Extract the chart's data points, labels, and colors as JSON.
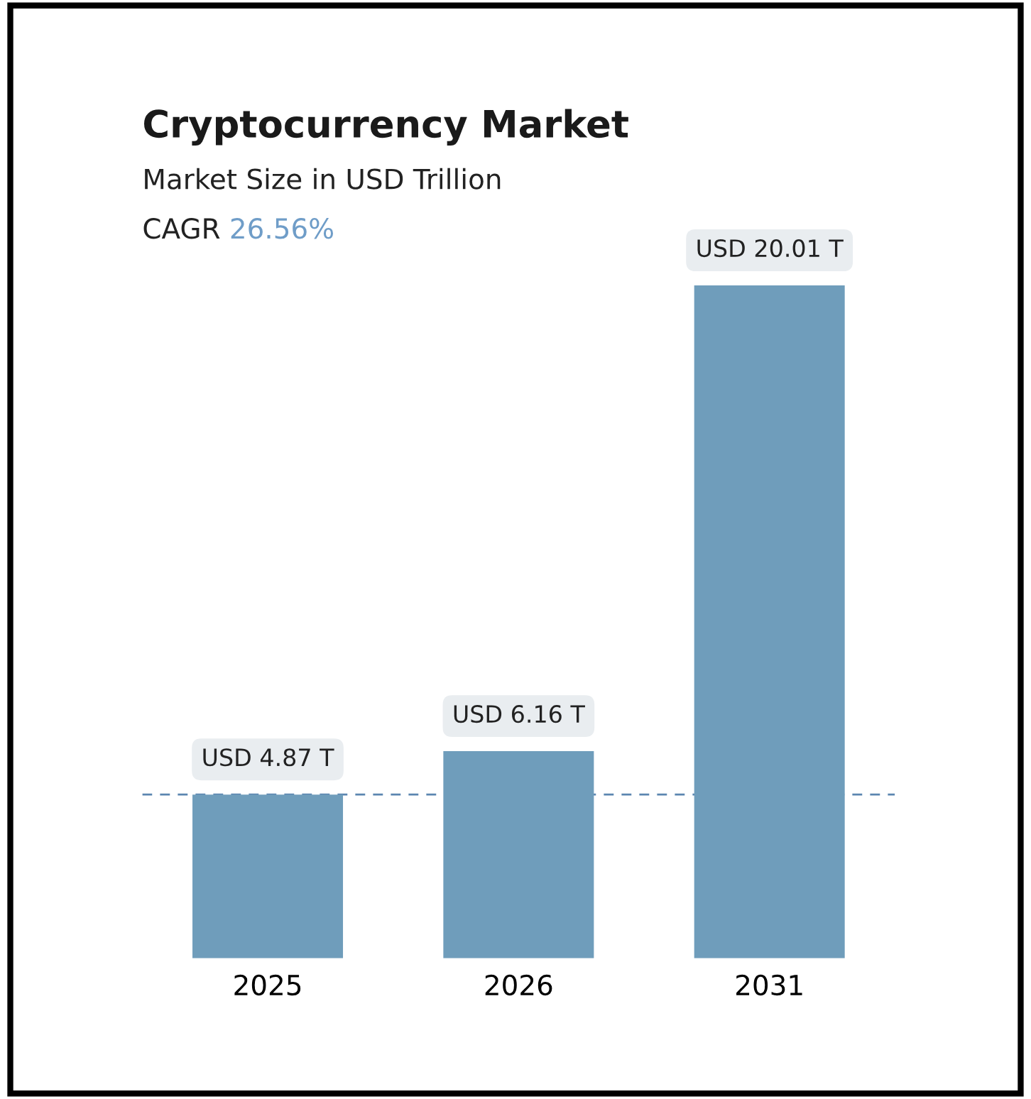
{
  "chart_data": {
    "type": "bar",
    "title": "Cryptocurrency Market",
    "subtitle": "Market Size in USD Trillion",
    "annotations": [
      "CAGR",
      "26.56%"
    ],
    "categories": [
      "2025",
      "2026",
      "2031"
    ],
    "values": [
      4.87,
      6.16,
      20.01
    ],
    "value_labels": [
      "USD 4.87 T",
      "USD 6.16 T",
      "USD 20.01 T"
    ],
    "color": "#6f9dbb",
    "ref_lines": [
      {
        "axis": "y",
        "value": 4.87,
        "color": "#5b86b0",
        "line_style": "dashed"
      }
    ],
    "grid": false
  }
}
